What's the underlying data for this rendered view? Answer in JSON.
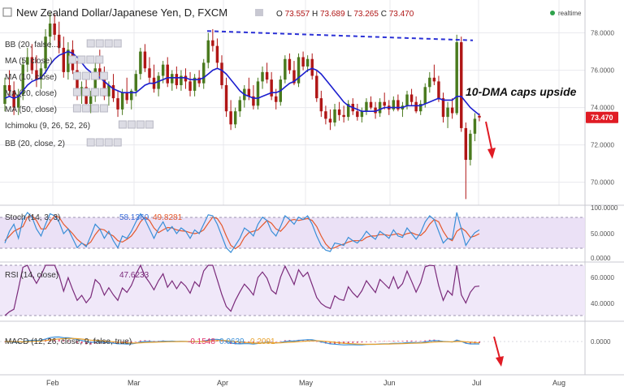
{
  "header": {
    "symbol_title": "New Zealand Dollar/Japanese Yen, D, FXCM",
    "ohlc": {
      "o_label": "O",
      "o": "73.557",
      "h_label": "H",
      "h": "73.689",
      "l_label": "L",
      "l": "73.265",
      "c_label": "C",
      "c": "73.470"
    },
    "realtime": "realtime",
    "current_price": "73.470"
  },
  "indicator_legend": [
    {
      "label": "BB (20, false...)",
      "id": "bb-top"
    },
    {
      "label": "MA (5, close)",
      "id": "ma5"
    },
    {
      "label": "MA (10, close)",
      "id": "ma10"
    },
    {
      "label": "MA (20, close)",
      "id": "ma20"
    },
    {
      "label": "MA (50, close)",
      "id": "ma50"
    },
    {
      "label": "Ichimoku (9, 26, 52, 26)",
      "id": "ichimoku"
    },
    {
      "label": "BB (20, close, 2)",
      "id": "bb"
    }
  ],
  "annotation": "10-DMA caps upside",
  "panels": {
    "stoch": {
      "label": "Stoch (14, 3, 3)",
      "v1": "58.1360",
      "v2": "49.8281",
      "ticks": [
        "100.0000",
        "50.0000",
        "0.0000"
      ]
    },
    "rsi": {
      "label": "RSI (14, close)",
      "v1": "47.6233",
      "ticks": [
        "60.0000",
        "40.0000"
      ]
    },
    "macd": {
      "label": "MACD (12, 26, close, 9, false, true)",
      "v1": "-0.1548",
      "v2": "0.0639",
      "v3": "0.2091",
      "ticks": [
        "0.0000"
      ]
    }
  },
  "colors": {
    "up": "#4a7a1e",
    "down": "#b01616",
    "ma": "#1c1fcf",
    "trend": "#2b31d6",
    "stoch_fast": "#3a8fd8",
    "stoch_slow": "#e4582c",
    "rsi": "#7a2a7a",
    "band": "#e7dcf4",
    "price_tag": "#e01b24",
    "grid": "#e9e9ee"
  },
  "chart_data": {
    "type": "candlestick",
    "x_tick_labels": [
      "Feb",
      "Mar",
      "Apr",
      "May",
      "Jun",
      "Jul",
      "Aug"
    ],
    "y_tick_labels": [
      "78.0000",
      "76.0000",
      "74.0000",
      "72.0000",
      "70.0000"
    ],
    "ylim": [
      68.9,
      79.5
    ],
    "trendline": {
      "start": 78.1,
      "end": 77.6
    },
    "candles": [
      [
        74.2,
        75.6,
        73.8,
        75.2
      ],
      [
        75.2,
        76.0,
        74.6,
        74.9
      ],
      [
        74.9,
        75.4,
        73.6,
        74.0
      ],
      [
        74.0,
        75.0,
        73.6,
        74.7
      ],
      [
        74.7,
        76.6,
        74.4,
        76.3
      ],
      [
        76.3,
        77.2,
        75.9,
        76.7
      ],
      [
        76.7,
        77.4,
        75.8,
        76.0
      ],
      [
        76.0,
        76.8,
        75.1,
        75.5
      ],
      [
        75.5,
        76.4,
        75.0,
        76.1
      ],
      [
        76.1,
        78.2,
        75.8,
        77.8
      ],
      [
        77.8,
        79.1,
        77.2,
        78.5
      ],
      [
        78.5,
        79.0,
        77.6,
        77.9
      ],
      [
        77.9,
        78.6,
        76.9,
        77.2
      ],
      [
        77.2,
        77.8,
        75.6,
        75.9
      ],
      [
        75.9,
        77.5,
        75.5,
        77.1
      ],
      [
        77.1,
        77.6,
        75.8,
        76.0
      ],
      [
        76.0,
        76.5,
        74.4,
        74.7
      ],
      [
        74.7,
        75.4,
        74.2,
        75.1
      ],
      [
        75.1,
        75.6,
        73.9,
        74.2
      ],
      [
        74.2,
        74.9,
        73.7,
        74.6
      ],
      [
        74.6,
        76.4,
        74.3,
        76.1
      ],
      [
        76.1,
        77.1,
        75.5,
        75.7
      ],
      [
        75.7,
        76.2,
        74.4,
        74.6
      ],
      [
        74.6,
        75.4,
        74.1,
        75.2
      ],
      [
        75.2,
        75.8,
        74.3,
        74.5
      ],
      [
        74.5,
        74.9,
        73.5,
        73.9
      ],
      [
        73.9,
        75.0,
        73.6,
        74.8
      ],
      [
        74.8,
        75.6,
        74.2,
        74.4
      ],
      [
        74.4,
        75.0,
        73.9,
        74.9
      ],
      [
        74.9,
        76.0,
        74.6,
        75.8
      ],
      [
        75.8,
        77.2,
        75.5,
        77.0
      ],
      [
        77.0,
        77.4,
        75.9,
        76.1
      ],
      [
        76.1,
        76.7,
        75.3,
        75.6
      ],
      [
        75.6,
        76.3,
        74.8,
        75.0
      ],
      [
        75.0,
        75.9,
        74.6,
        75.7
      ],
      [
        75.7,
        76.5,
        75.3,
        76.3
      ],
      [
        76.3,
        76.7,
        75.1,
        75.3
      ],
      [
        75.3,
        76.0,
        74.9,
        75.8
      ],
      [
        75.8,
        76.2,
        75.0,
        75.2
      ],
      [
        75.2,
        76.0,
        74.9,
        75.7
      ],
      [
        75.7,
        76.1,
        75.0,
        75.4
      ],
      [
        75.4,
        75.9,
        74.6,
        74.9
      ],
      [
        74.9,
        75.8,
        74.6,
        75.6
      ],
      [
        75.6,
        76.0,
        75.1,
        75.3
      ],
      [
        75.3,
        76.6,
        75.0,
        76.4
      ],
      [
        76.4,
        78.0,
        76.1,
        77.6
      ],
      [
        77.6,
        78.2,
        77.0,
        77.3
      ],
      [
        77.3,
        77.7,
        76.1,
        76.4
      ],
      [
        76.4,
        76.8,
        75.0,
        75.2
      ],
      [
        75.2,
        75.6,
        73.5,
        73.8
      ],
      [
        73.8,
        74.4,
        72.8,
        73.1
      ],
      [
        73.1,
        74.0,
        72.9,
        73.8
      ],
      [
        73.8,
        74.6,
        73.5,
        74.4
      ],
      [
        74.4,
        75.2,
        74.0,
        75.0
      ],
      [
        75.0,
        75.6,
        74.4,
        74.6
      ],
      [
        74.6,
        75.2,
        73.9,
        74.1
      ],
      [
        74.1,
        75.6,
        73.9,
        75.4
      ],
      [
        75.4,
        76.2,
        75.0,
        75.9
      ],
      [
        75.9,
        76.4,
        75.3,
        75.5
      ],
      [
        75.5,
        75.9,
        74.4,
        74.6
      ],
      [
        74.6,
        75.0,
        73.9,
        74.3
      ],
      [
        74.3,
        75.7,
        74.1,
        75.5
      ],
      [
        75.5,
        76.8,
        75.3,
        76.6
      ],
      [
        76.6,
        76.9,
        75.8,
        76.0
      ],
      [
        76.0,
        76.5,
        75.2,
        75.3
      ],
      [
        75.3,
        76.9,
        75.1,
        76.7
      ],
      [
        76.7,
        77.0,
        76.0,
        76.2
      ],
      [
        76.2,
        76.8,
        75.9,
        76.6
      ],
      [
        76.6,
        76.9,
        75.5,
        75.7
      ],
      [
        75.7,
        76.0,
        74.3,
        74.5
      ],
      [
        74.5,
        74.9,
        73.5,
        73.8
      ],
      [
        73.8,
        74.1,
        73.1,
        73.4
      ],
      [
        73.4,
        73.9,
        72.8,
        73.2
      ],
      [
        73.2,
        74.2,
        73.0,
        73.9
      ],
      [
        73.9,
        74.3,
        73.3,
        73.6
      ],
      [
        73.6,
        74.1,
        73.2,
        73.5
      ],
      [
        73.5,
        74.4,
        73.3,
        74.2
      ],
      [
        74.2,
        74.5,
        73.6,
        73.8
      ],
      [
        73.8,
        74.2,
        73.3,
        73.5
      ],
      [
        73.5,
        74.0,
        73.2,
        73.8
      ],
      [
        73.8,
        74.5,
        73.6,
        74.3
      ],
      [
        74.3,
        74.6,
        73.9,
        74.0
      ],
      [
        74.0,
        74.3,
        73.4,
        73.7
      ],
      [
        73.7,
        74.5,
        73.5,
        74.3
      ],
      [
        74.3,
        74.8,
        73.9,
        74.1
      ],
      [
        74.1,
        74.4,
        73.6,
        73.9
      ],
      [
        73.9,
        74.6,
        73.8,
        74.4
      ],
      [
        74.4,
        74.7,
        73.8,
        73.9
      ],
      [
        73.9,
        74.3,
        73.5,
        74.1
      ],
      [
        74.1,
        74.9,
        73.9,
        74.7
      ],
      [
        74.7,
        75.0,
        74.1,
        74.3
      ],
      [
        74.3,
        74.6,
        73.7,
        73.8
      ],
      [
        73.8,
        74.4,
        73.6,
        74.2
      ],
      [
        74.2,
        75.3,
        74.0,
        75.1
      ],
      [
        75.1,
        75.9,
        74.8,
        75.6
      ],
      [
        75.6,
        76.3,
        75.2,
        75.4
      ],
      [
        75.4,
        75.7,
        74.3,
        74.5
      ],
      [
        74.5,
        74.8,
        73.2,
        73.5
      ],
      [
        73.5,
        74.3,
        72.9,
        74.0
      ],
      [
        74.0,
        74.5,
        73.4,
        73.7
      ],
      [
        73.7,
        77.9,
        73.6,
        77.5
      ],
      [
        77.5,
        77.8,
        72.7,
        72.9
      ],
      [
        72.9,
        73.2,
        69.1,
        71.2
      ],
      [
        71.2,
        72.8,
        70.9,
        72.6
      ],
      [
        72.6,
        73.7,
        72.2,
        73.4
      ],
      [
        73.557,
        73.689,
        73.265,
        73.47
      ]
    ],
    "ma10": [
      74.5,
      74.6,
      74.5,
      74.6,
      74.9,
      75.2,
      75.4,
      75.5,
      75.6,
      75.9,
      76.3,
      76.6,
      76.8,
      76.9,
      77.0,
      76.9,
      76.7,
      76.4,
      76.1,
      75.9,
      75.8,
      75.6,
      75.4,
      75.2,
      75.0,
      74.9,
      74.8,
      74.8,
      74.8,
      74.8,
      75.0,
      75.2,
      75.3,
      75.3,
      75.4,
      75.5,
      75.6,
      75.6,
      75.6,
      75.6,
      75.6,
      75.5,
      75.5,
      75.5,
      75.6,
      75.8,
      76.0,
      76.1,
      76.0,
      75.8,
      75.5,
      75.2,
      74.9,
      74.7,
      74.6,
      74.5,
      74.5,
      74.6,
      74.7,
      74.8,
      74.8,
      74.9,
      75.1,
      75.3,
      75.4,
      75.6,
      75.8,
      76.0,
      76.1,
      76.0,
      75.8,
      75.5,
      75.2,
      74.9,
      74.6,
      74.3,
      74.1,
      74.0,
      73.9,
      73.8,
      73.8,
      73.8,
      73.8,
      73.9,
      74.0,
      74.0,
      74.0,
      74.0,
      74.0,
      74.1,
      74.1,
      74.1,
      74.1,
      74.2,
      74.3,
      74.4,
      74.5,
      74.4,
      74.4,
      74.4,
      74.6,
      74.6,
      74.3,
      74.0,
      73.8,
      73.6
    ],
    "stoch_fast": [
      30,
      55,
      70,
      40,
      80,
      95,
      85,
      60,
      45,
      70,
      92,
      88,
      75,
      50,
      60,
      40,
      20,
      30,
      22,
      45,
      70,
      60,
      40,
      55,
      35,
      20,
      45,
      40,
      55,
      75,
      92,
      80,
      60,
      40,
      60,
      75,
      55,
      65,
      50,
      62,
      55,
      40,
      58,
      50,
      70,
      90,
      88,
      70,
      45,
      20,
      10,
      25,
      40,
      62,
      55,
      45,
      70,
      85,
      78,
      55,
      45,
      65,
      88,
      80,
      70,
      85,
      80,
      88,
      70,
      45,
      25,
      15,
      12,
      30,
      28,
      25,
      42,
      35,
      30,
      40,
      55,
      45,
      38,
      55,
      48,
      40,
      58,
      45,
      42,
      62,
      50,
      38,
      52,
      75,
      88,
      80,
      55,
      30,
      40,
      38,
      95,
      60,
      25,
      40,
      52,
      58
    ],
    "stoch_slow": [
      35,
      45,
      55,
      60,
      65,
      85,
      88,
      78,
      60,
      60,
      75,
      88,
      85,
      70,
      60,
      50,
      38,
      30,
      25,
      32,
      48,
      60,
      58,
      50,
      45,
      35,
      32,
      38,
      45,
      58,
      75,
      85,
      78,
      62,
      52,
      58,
      63,
      62,
      58,
      56,
      55,
      52,
      50,
      52,
      58,
      72,
      85,
      82,
      68,
      45,
      25,
      18,
      25,
      42,
      52,
      55,
      58,
      68,
      78,
      72,
      60,
      55,
      65,
      78,
      80,
      78,
      80,
      82,
      78,
      65,
      45,
      28,
      18,
      20,
      25,
      28,
      32,
      35,
      35,
      35,
      42,
      45,
      45,
      48,
      48,
      46,
      48,
      50,
      46,
      50,
      52,
      48,
      46,
      55,
      70,
      80,
      75,
      55,
      40,
      35,
      55,
      62,
      55,
      42,
      45,
      49.8
    ]
  }
}
